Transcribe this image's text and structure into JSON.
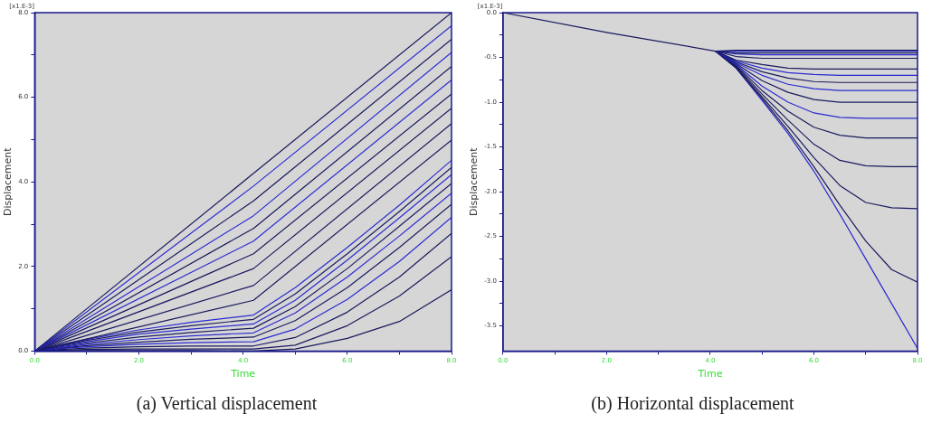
{
  "chart_data": [
    {
      "type": "line",
      "title": "(a) Vertical displacement",
      "xlabel": "Time",
      "ylabel": "Displacement",
      "annotations": [
        "[x1.E-3]"
      ],
      "xlim": [
        0,
        8
      ],
      "ylim": [
        0,
        8
      ],
      "xticks": [
        {
          "value": 0,
          "label": "0.0"
        },
        {
          "value": 1,
          "label": null
        },
        {
          "value": 2,
          "label": "2.0"
        },
        {
          "value": 3,
          "label": null
        },
        {
          "value": 4,
          "label": "4.0"
        },
        {
          "value": 5,
          "label": null
        },
        {
          "value": 6,
          "label": "6.0"
        },
        {
          "value": 7,
          "label": null
        },
        {
          "value": 8,
          "label": "8.0"
        }
      ],
      "yticks": [
        {
          "value": 0,
          "label": "0.0"
        },
        {
          "value": 1,
          "label": null
        },
        {
          "value": 2,
          "label": "2.0"
        },
        {
          "value": 3,
          "label": null
        },
        {
          "value": 4,
          "label": "4.0"
        },
        {
          "value": 5,
          "label": null
        },
        {
          "value": 6,
          "label": "6.0"
        },
        {
          "value": 7,
          "label": null
        },
        {
          "value": 8,
          "label": "8.0"
        }
      ],
      "marker": "none",
      "line_style": "solid",
      "series": [
        {
          "color": "#1a1a5e",
          "x": [
            0,
            4.2,
            8
          ],
          "values": [
            0,
            4.2,
            8.0
          ]
        },
        {
          "color": "#2a2ad0",
          "x": [
            0,
            4.2,
            8
          ],
          "values": [
            0,
            3.9,
            7.69
          ]
        },
        {
          "color": "#1a1a5e",
          "x": [
            0,
            4.2,
            8
          ],
          "values": [
            0,
            3.55,
            7.37
          ]
        },
        {
          "color": "#2a2ad0",
          "x": [
            0,
            4.2,
            8
          ],
          "values": [
            0,
            3.2,
            7.06
          ]
        },
        {
          "color": "#1a1a5e",
          "x": [
            0,
            4.2,
            8
          ],
          "values": [
            0,
            2.9,
            6.73
          ]
        },
        {
          "color": "#2a2ad0",
          "x": [
            0,
            4.2,
            8
          ],
          "values": [
            0,
            2.6,
            6.41
          ]
        },
        {
          "color": "#1a1a5e",
          "x": [
            0,
            4.2,
            8
          ],
          "values": [
            0,
            2.3,
            6.08
          ]
        },
        {
          "color": "#1a1a5e",
          "x": [
            0,
            4.2,
            8
          ],
          "values": [
            0,
            1.95,
            5.74
          ]
        },
        {
          "color": "#1a1a5e",
          "x": [
            0,
            4.2,
            8
          ],
          "values": [
            0,
            1.55,
            5.38
          ]
        },
        {
          "color": "#1a1a5e",
          "x": [
            0,
            4.2,
            8
          ],
          "values": [
            0,
            1.2,
            4.99
          ]
        },
        {
          "color": "#2a2ad0",
          "x": [
            0,
            0.5,
            1,
            2,
            3,
            4.2,
            5,
            6,
            7,
            8
          ],
          "values": [
            0,
            0.15,
            0.28,
            0.5,
            0.68,
            0.85,
            1.5,
            2.45,
            3.45,
            4.51
          ]
        },
        {
          "color": "#1a1a5e",
          "x": [
            0,
            0.5,
            1,
            2,
            3,
            4.2,
            5,
            6,
            7,
            8
          ],
          "values": [
            0,
            0.13,
            0.25,
            0.45,
            0.6,
            0.75,
            1.35,
            2.3,
            3.3,
            4.34
          ]
        },
        {
          "color": "#2a2ad0",
          "x": [
            0,
            0.5,
            1,
            2,
            3,
            4.2,
            5,
            6,
            7,
            8
          ],
          "values": [
            0,
            0.12,
            0.22,
            0.4,
            0.52,
            0.64,
            1.2,
            2.15,
            3.15,
            4.17
          ]
        },
        {
          "color": "#1a1a5e",
          "x": [
            0,
            0.5,
            1,
            2,
            3,
            4.2,
            5,
            6,
            7,
            8
          ],
          "values": [
            0,
            0.1,
            0.19,
            0.33,
            0.44,
            0.54,
            1.05,
            1.95,
            2.95,
            3.96
          ]
        },
        {
          "color": "#2a2ad0",
          "x": [
            0,
            0.5,
            1,
            2,
            3,
            4.2,
            5,
            6,
            7,
            8
          ],
          "values": [
            0,
            0.08,
            0.16,
            0.27,
            0.36,
            0.43,
            0.9,
            1.75,
            2.72,
            3.73
          ]
        },
        {
          "color": "#1a1a5e",
          "x": [
            0,
            0.5,
            1,
            2,
            3,
            4.2,
            5,
            6,
            7,
            8
          ],
          "values": [
            0,
            0.07,
            0.13,
            0.21,
            0.28,
            0.33,
            0.72,
            1.5,
            2.45,
            3.47
          ]
        },
        {
          "color": "#2a2ad0",
          "x": [
            0,
            0.5,
            1,
            2,
            3,
            4.2,
            5,
            6,
            7,
            8
          ],
          "values": [
            0,
            0.06,
            0.1,
            0.16,
            0.2,
            0.22,
            0.52,
            1.22,
            2.12,
            3.16
          ]
        },
        {
          "color": "#1a1a5e",
          "x": [
            0,
            0.5,
            1,
            2,
            3,
            4.2,
            5,
            6,
            7,
            8
          ],
          "values": [
            0,
            0.04,
            0.07,
            0.1,
            0.12,
            0.12,
            0.32,
            0.92,
            1.75,
            2.78
          ]
        },
        {
          "color": "#1a1a5e",
          "x": [
            0,
            0.5,
            1,
            2,
            3,
            4.2,
            5,
            6,
            7,
            8
          ],
          "values": [
            0,
            0.02,
            0.04,
            0.05,
            0.05,
            0.05,
            0.14,
            0.6,
            1.3,
            2.23
          ]
        },
        {
          "color": "#1a1a5e",
          "x": [
            0,
            0.5,
            1,
            2,
            3,
            4.2,
            5,
            6,
            7,
            8
          ],
          "values": [
            0,
            0,
            0.01,
            0.01,
            0.01,
            0,
            0.05,
            0.3,
            0.7,
            1.45
          ]
        }
      ]
    },
    {
      "type": "line",
      "title": "(b) Horizontal displacement",
      "xlabel": "Time",
      "ylabel": "Displacement",
      "annotations": [
        "[x1.E-3]"
      ],
      "xlim": [
        0,
        8
      ],
      "ylim": [
        -3.78,
        0
      ],
      "xticks": [
        {
          "value": 0,
          "label": "0.0"
        },
        {
          "value": 1,
          "label": null
        },
        {
          "value": 2,
          "label": "2.0"
        },
        {
          "value": 3,
          "label": null
        },
        {
          "value": 4,
          "label": "4.0"
        },
        {
          "value": 5,
          "label": null
        },
        {
          "value": 6,
          "label": "6.0"
        },
        {
          "value": 7,
          "label": null
        },
        {
          "value": 8,
          "label": "8.0"
        }
      ],
      "yticks": [
        {
          "value": 0,
          "label": "0.0"
        },
        {
          "value": -0.25,
          "label": null
        },
        {
          "value": -0.5,
          "label": "-0.5"
        },
        {
          "value": -0.75,
          "label": null
        },
        {
          "value": -1,
          "label": "-1.0"
        },
        {
          "value": -1.25,
          "label": null
        },
        {
          "value": -1.5,
          "label": "-1.5"
        },
        {
          "value": -1.75,
          "label": null
        },
        {
          "value": -2,
          "label": "-2.0"
        },
        {
          "value": -2.25,
          "label": null
        },
        {
          "value": -2.5,
          "label": "-2.5"
        },
        {
          "value": -2.75,
          "label": null
        },
        {
          "value": -3,
          "label": "-3.0"
        },
        {
          "value": -3.25,
          "label": null
        },
        {
          "value": -3.5,
          "label": "-3.5"
        }
      ],
      "marker": "none",
      "line_style": "solid",
      "series": [
        {
          "color": "#1a1a5e",
          "x": [
            0,
            2,
            4.1,
            4.5,
            8
          ],
          "values": [
            0,
            -0.22,
            -0.43,
            -0.42,
            -0.42
          ]
        },
        {
          "color": "#2a2ad0",
          "x": [
            4.1,
            4.5,
            8
          ],
          "values": [
            -0.43,
            -0.43,
            -0.43
          ]
        },
        {
          "color": "#1a1a5e",
          "x": [
            4.1,
            4.5,
            8
          ],
          "values": [
            -0.43,
            -0.45,
            -0.45
          ]
        },
        {
          "color": "#2a2ad0",
          "x": [
            4.1,
            4.5,
            5,
            8
          ],
          "values": [
            -0.43,
            -0.46,
            -0.47,
            -0.47
          ]
        },
        {
          "color": "#1a1a5e",
          "x": [
            4.1,
            4.5,
            5,
            8
          ],
          "values": [
            -0.43,
            -0.49,
            -0.51,
            -0.51
          ]
        },
        {
          "color": "#1a1a5e",
          "x": [
            4.1,
            4.5,
            5,
            5.5,
            6,
            8
          ],
          "values": [
            -0.43,
            -0.53,
            -0.58,
            -0.62,
            -0.63,
            -0.63
          ]
        },
        {
          "color": "#2a2ad0",
          "x": [
            4.1,
            4.5,
            5,
            5.5,
            6,
            6.5,
            8
          ],
          "values": [
            -0.43,
            -0.54,
            -0.62,
            -0.67,
            -0.69,
            -0.7,
            -0.7
          ]
        },
        {
          "color": "#1a1a5e",
          "x": [
            4.1,
            4.5,
            5,
            5.5,
            6,
            6.5,
            8
          ],
          "values": [
            -0.43,
            -0.55,
            -0.66,
            -0.73,
            -0.77,
            -0.78,
            -0.78
          ]
        },
        {
          "color": "#2a2ad0",
          "x": [
            4.1,
            4.5,
            5,
            5.5,
            6,
            6.5,
            8
          ],
          "values": [
            -0.43,
            -0.56,
            -0.7,
            -0.8,
            -0.85,
            -0.87,
            -0.87
          ]
        },
        {
          "color": "#1a1a5e",
          "x": [
            4.1,
            4.5,
            5,
            5.5,
            6,
            6.5,
            8
          ],
          "values": [
            -0.43,
            -0.57,
            -0.76,
            -0.89,
            -0.97,
            -1.0,
            -1.0
          ]
        },
        {
          "color": "#2a2ad0",
          "x": [
            4.1,
            4.5,
            5,
            5.5,
            6,
            6.5,
            7,
            8
          ],
          "values": [
            -0.43,
            -0.58,
            -0.82,
            -1.0,
            -1.12,
            -1.17,
            -1.18,
            -1.18
          ]
        },
        {
          "color": "#1a1a5e",
          "x": [
            4.1,
            4.5,
            5,
            5.5,
            6,
            6.5,
            7,
            8
          ],
          "values": [
            -0.43,
            -0.59,
            -0.87,
            -1.1,
            -1.28,
            -1.37,
            -1.4,
            -1.4
          ]
        },
        {
          "color": "#1a1a5e",
          "x": [
            4.1,
            4.5,
            5,
            5.5,
            6,
            6.5,
            7,
            7.5,
            8
          ],
          "values": [
            -0.43,
            -0.6,
            -0.91,
            -1.2,
            -1.47,
            -1.65,
            -1.71,
            -1.72,
            -1.72
          ]
        },
        {
          "color": "#1a1a5e",
          "x": [
            4.1,
            4.5,
            5,
            5.5,
            6,
            6.5,
            7,
            7.5,
            8
          ],
          "values": [
            -0.43,
            -0.61,
            -0.94,
            -1.27,
            -1.62,
            -1.93,
            -2.12,
            -2.18,
            -2.19
          ]
        },
        {
          "color": "#1a1a5e",
          "x": [
            4.1,
            4.5,
            5,
            5.5,
            6,
            6.5,
            7,
            7.5,
            8
          ],
          "values": [
            -0.43,
            -0.62,
            -0.96,
            -1.32,
            -1.72,
            -2.15,
            -2.55,
            -2.87,
            -3.01
          ]
        },
        {
          "color": "#2a2ad0",
          "x": [
            4.1,
            4.5,
            5,
            5.5,
            6,
            6.5,
            7,
            7.5,
            8
          ],
          "values": [
            -0.43,
            -0.62,
            -0.98,
            -1.35,
            -1.77,
            -2.25,
            -2.75,
            -3.25,
            -3.75
          ]
        }
      ]
    }
  ]
}
